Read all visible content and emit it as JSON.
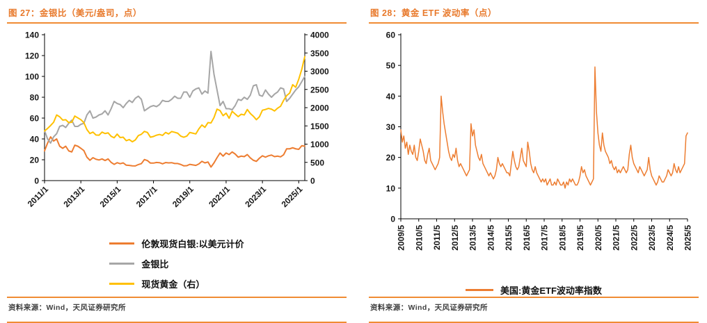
{
  "page": {
    "left": {
      "title": "图 27：金银比（美元/盎司，点）",
      "legend": [
        "伦敦现货白银:以美元计价",
        "金银比",
        "现货黄金（右）"
      ],
      "source": "资料来源：Wind，天风证券研究所"
    },
    "right": {
      "title": "图 28：黄金 ETF 波动率（点）",
      "legend": [
        "美国:黄金ETF波动率指数"
      ],
      "source": "资料来源：Wind，天风证券研究所"
    },
    "colors": {
      "accent_orange": "#EE7F2D",
      "series_orange": "#ED7D31",
      "series_gray": "#A6A6A6",
      "series_gold": "#FFC000",
      "axis_black": "#000000"
    }
  },
  "chart_data": [
    {
      "type": "line",
      "title": "图 27：金银比（美元/盎司，点）",
      "grid": false,
      "legend_position": "bottom",
      "x_start": "2011/1",
      "x_end": "2025/5",
      "x_step_months": 2,
      "x_tick_labels": [
        "2011/1",
        "2013/1",
        "2015/1",
        "2017/1",
        "2019/1",
        "2021/1",
        "2023/1",
        "2025/1"
      ],
      "x_tick_indices": [
        0,
        12,
        24,
        36,
        48,
        60,
        72,
        84
      ],
      "x_label_rotation": -45,
      "left_axis": {
        "min": 0,
        "max": 140,
        "step": 20
      },
      "right_axis": {
        "min": 0,
        "max": 4000,
        "step": 500
      },
      "series": [
        {
          "name": "伦敦现货白银:以美元计价",
          "axis": "left",
          "color": "#ED7D31",
          "values": [
            28.5,
            36,
            42,
            38,
            40,
            33,
            31,
            33,
            28.5,
            27.5,
            34,
            33,
            31,
            28.8,
            22.5,
            19.5,
            22,
            20.5,
            19.8,
            20.8,
            19.3,
            20.8,
            17.5,
            15.6,
            17.2,
            16.2,
            17,
            14.8,
            14.6,
            14.2,
            14.1,
            15.4,
            16.3,
            20.2,
            19.2,
            16.8,
            16.8,
            17.4,
            17.2,
            16.1,
            17.3,
            17,
            17.2,
            16.4,
            16.4,
            15.5,
            14.2,
            14.3,
            15.6,
            15.1,
            14.6,
            16,
            18.5,
            17,
            17.9,
            13,
            17,
            22,
            26.5,
            23.5,
            26.5,
            25,
            27.5,
            25.5,
            22.5,
            23.5,
            23,
            25,
            21.8,
            19.5,
            18.5,
            21.5,
            23.8,
            22.5,
            23.8,
            24.5,
            23,
            23.5,
            22.8,
            24.8,
            30.5,
            30.5,
            31.5,
            30.5,
            30,
            33.5,
            33
          ]
        },
        {
          "name": "金银比",
          "axis": "left",
          "color": "#A6A6A6",
          "values": [
            48,
            40,
            36,
            42,
            45,
            52,
            53,
            51,
            55,
            58,
            52,
            52,
            54,
            55,
            63,
            67,
            60,
            61,
            63,
            64,
            67,
            63,
            69,
            76,
            74,
            73,
            70,
            74,
            77,
            75,
            79,
            81,
            78,
            67,
            69,
            71,
            72,
            71,
            73,
            77,
            76,
            76,
            78,
            81,
            79,
            79,
            85,
            85,
            80,
            86,
            88,
            89,
            83,
            86,
            84,
            124,
            102,
            87,
            72,
            76,
            69,
            69,
            68,
            72,
            78,
            77,
            80,
            78,
            82,
            91,
            92,
            82,
            81,
            87,
            83,
            80,
            83,
            85,
            89,
            88,
            76,
            79,
            83,
            87,
            90,
            95,
            100
          ]
        },
        {
          "name": "现货黄金（右）",
          "axis": "right",
          "color": "#FFC000",
          "values": [
            1360,
            1430,
            1510,
            1600,
            1800,
            1750,
            1660,
            1670,
            1590,
            1600,
            1770,
            1720,
            1670,
            1590,
            1400,
            1290,
            1330,
            1250,
            1245,
            1330,
            1290,
            1310,
            1215,
            1175,
            1275,
            1180,
            1190,
            1095,
            1125,
            1065,
            1115,
            1235,
            1270,
            1350,
            1320,
            1190,
            1210,
            1245,
            1265,
            1240,
            1320,
            1280,
            1345,
            1325,
            1300,
            1220,
            1190,
            1220,
            1320,
            1300,
            1280,
            1420,
            1525,
            1460,
            1590,
            1580,
            1730,
            1960,
            1920,
            1780,
            1850,
            1710,
            1900,
            1825,
            1755,
            1820,
            1800,
            1950,
            1840,
            1765,
            1670,
            1750,
            1930,
            1950,
            1980,
            1960,
            1910,
            1985,
            2040,
            2200,
            2330,
            2400,
            2630,
            2560,
            2780,
            3050,
            3400
          ]
        }
      ]
    },
    {
      "type": "line",
      "title": "图 28：黄金 ETF 波动率（点）",
      "grid": false,
      "legend_position": "bottom",
      "x_start": "2009/5",
      "x_end": "2025/5",
      "x_step_months": 1,
      "x_tick_labels": [
        "2009/5",
        "2010/5",
        "2011/5",
        "2012/5",
        "2013/5",
        "2014/5",
        "2015/5",
        "2016/5",
        "2017/5",
        "2018/5",
        "2019/5",
        "2020/5",
        "2021/5",
        "2022/5",
        "2023/5",
        "2024/5",
        "2025/5"
      ],
      "x_tick_indices": [
        0,
        12,
        24,
        36,
        48,
        60,
        72,
        84,
        96,
        108,
        120,
        132,
        144,
        156,
        168,
        180,
        192
      ],
      "x_label_rotation": -90,
      "left_axis": {
        "min": 0,
        "max": 60,
        "step": 10
      },
      "series": [
        {
          "name": "美国:黄金ETF波动率指数",
          "axis": "left",
          "color": "#ED7D31",
          "values": [
            29,
            25,
            27,
            23,
            25,
            21,
            24,
            22,
            21,
            24,
            20,
            19,
            22,
            26,
            24,
            22,
            19,
            18,
            21,
            23,
            19,
            18,
            17,
            16,
            17,
            18,
            20,
            40,
            35,
            31,
            28,
            25,
            22,
            20,
            19,
            21,
            20,
            23,
            19,
            17,
            18,
            17,
            16,
            15,
            14,
            15,
            16,
            31,
            27,
            29,
            24,
            22,
            20,
            19,
            21,
            18,
            17,
            16,
            15,
            14,
            15,
            14,
            13,
            14,
            16,
            20,
            18,
            17,
            18,
            17,
            16,
            15,
            15,
            14,
            18,
            22,
            19,
            17,
            16,
            17,
            20,
            23,
            19,
            18,
            17,
            25,
            22,
            18,
            16,
            15,
            17,
            15,
            14,
            13,
            12,
            13,
            12,
            13,
            11,
            12,
            13,
            11,
            11,
            12,
            11,
            13,
            12,
            11,
            11,
            12,
            10,
            12,
            11,
            13,
            12,
            13,
            12,
            11,
            11,
            12,
            14,
            17,
            15,
            16,
            14,
            13,
            12,
            11,
            12,
            13,
            49.5,
            35,
            28,
            24,
            22,
            28,
            24,
            22,
            21,
            20,
            18,
            19,
            17,
            16,
            17,
            15,
            16,
            15,
            16,
            17,
            16,
            15,
            16,
            21,
            24,
            20,
            18,
            17,
            16,
            15,
            17,
            16,
            15,
            14,
            15,
            16,
            20,
            16,
            14,
            13,
            12,
            11,
            12,
            14,
            13,
            12,
            12,
            13,
            14,
            16,
            15,
            14,
            15,
            18,
            16,
            15,
            17,
            15,
            16,
            17,
            18,
            27,
            28
          ]
        }
      ]
    }
  ]
}
